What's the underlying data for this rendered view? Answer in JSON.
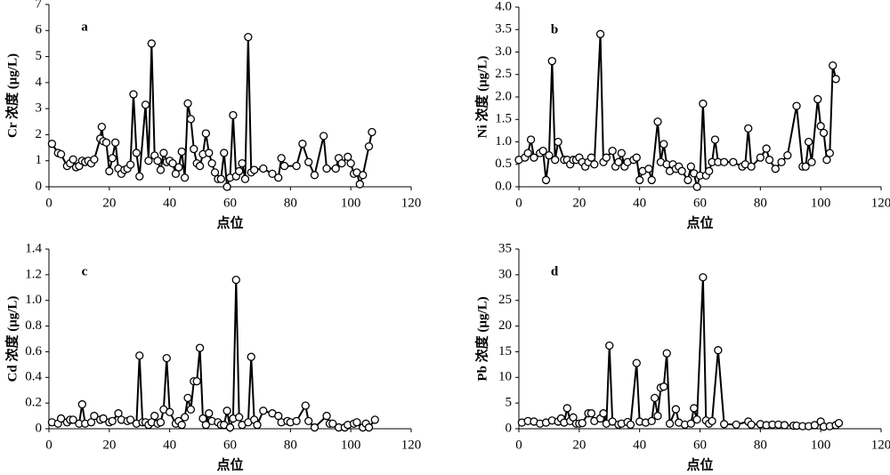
{
  "chart_data": [
    {
      "type": "line",
      "label": "a",
      "ylabel": "Cr 浓度 (μg/L)",
      "xlabel": "点位",
      "x": [
        1,
        3,
        4,
        6,
        7,
        8,
        9,
        10,
        11,
        12,
        13,
        14,
        15,
        17,
        17.5,
        18,
        19,
        20,
        21,
        22,
        23,
        24,
        25,
        26,
        27,
        28,
        29,
        30,
        32,
        33,
        34,
        35,
        36,
        37,
        38,
        39,
        40,
        41,
        42,
        43,
        44,
        45,
        46,
        47,
        48,
        49,
        50,
        51,
        52,
        53,
        54,
        55,
        56,
        57,
        58,
        59,
        60,
        61,
        62,
        63,
        64,
        65,
        66,
        67,
        68,
        71,
        74,
        76,
        77,
        78,
        82,
        84,
        86,
        88,
        91,
        92,
        95,
        96,
        97,
        99,
        100,
        101,
        102,
        103,
        104,
        106,
        107
      ],
      "values": [
        1.65,
        1.3,
        1.25,
        0.8,
        0.9,
        1.05,
        0.75,
        0.8,
        1.0,
        0.95,
        1.0,
        0.9,
        1.05,
        1.85,
        2.3,
        1.75,
        1.7,
        0.6,
        1.1,
        1.7,
        0.7,
        0.5,
        0.65,
        0.7,
        0.85,
        3.55,
        1.3,
        0.4,
        3.15,
        1.0,
        5.5,
        1.2,
        1.0,
        0.65,
        1.3,
        0.95,
        1.0,
        0.9,
        0.5,
        0.75,
        1.35,
        0.35,
        3.2,
        2.6,
        1.45,
        0.9,
        0.8,
        1.25,
        2.05,
        1.3,
        0.9,
        0.55,
        0.3,
        0.3,
        1.3,
        0.0,
        0.35,
        2.75,
        0.4,
        0.6,
        0.9,
        0.3,
        5.75,
        0.55,
        0.65,
        0.7,
        0.5,
        0.35,
        1.1,
        0.8,
        0.8,
        1.65,
        0.95,
        0.45,
        1.95,
        0.7,
        0.7,
        1.1,
        0.9,
        1.15,
        0.9,
        0.5,
        0.55,
        0.1,
        0.45,
        1.55,
        2.1
      ],
      "xlim": [
        0,
        120
      ],
      "xticks": [
        0,
        20,
        40,
        60,
        80,
        100,
        120
      ],
      "ylim": [
        0,
        7
      ],
      "yticks": [
        0,
        1,
        2,
        3,
        4,
        5,
        6,
        7
      ]
    },
    {
      "type": "line",
      "label": "b",
      "ylabel": "Ni 浓度 (μg/L)",
      "xlabel": "点位",
      "x": [
        0,
        2,
        3,
        4,
        5,
        7,
        8,
        9,
        10,
        11,
        12,
        13,
        15,
        16,
        17,
        18,
        19,
        20,
        21,
        22,
        23,
        24,
        25,
        27,
        28,
        29,
        31,
        32,
        33,
        34,
        35,
        36,
        38,
        39,
        40,
        41,
        43,
        44,
        46,
        47,
        48,
        49,
        50,
        51,
        52,
        53,
        54,
        56,
        57,
        58,
        59,
        60,
        61,
        62,
        63,
        64,
        65,
        66,
        68,
        71,
        74,
        75,
        76,
        77,
        80,
        82,
        83,
        85,
        87,
        89,
        92,
        94,
        95,
        96,
        97,
        99,
        100,
        101,
        102,
        103,
        104,
        105
      ],
      "values": [
        0.6,
        0.65,
        0.75,
        1.05,
        0.65,
        0.75,
        0.8,
        0.15,
        0.7,
        2.8,
        0.6,
        1.0,
        0.6,
        0.6,
        0.5,
        0.6,
        0.6,
        0.65,
        0.55,
        0.45,
        0.55,
        0.65,
        0.5,
        3.4,
        0.55,
        0.65,
        0.8,
        0.45,
        0.55,
        0.75,
        0.45,
        0.55,
        0.6,
        0.65,
        0.15,
        0.35,
        0.4,
        0.15,
        1.45,
        0.55,
        0.95,
        0.5,
        0.35,
        0.5,
        0.4,
        0.45,
        0.35,
        0.15,
        0.45,
        0.3,
        0,
        0.25,
        1.85,
        0.25,
        0.35,
        0.55,
        1.05,
        0.55,
        0.55,
        0.55,
        0.45,
        0.5,
        1.3,
        0.45,
        0.65,
        0.85,
        0.6,
        0.4,
        0.55,
        0.7,
        1.8,
        0.45,
        0.45,
        1.0,
        0.55,
        1.95,
        1.35,
        1.2,
        0.6,
        0.75,
        2.7,
        2.4
      ],
      "xlim": [
        0,
        120
      ],
      "xticks": [
        0,
        20,
        40,
        60,
        80,
        100,
        120
      ],
      "ylim": [
        0,
        4
      ],
      "yticks": [
        {
          "value": 0,
          "label": "0.0"
        },
        {
          "value": 0.5,
          "label": "0.5"
        },
        {
          "value": 1,
          "label": "1.0"
        },
        {
          "value": 1.5,
          "label": "1.5"
        },
        {
          "value": 2,
          "label": "2.0"
        },
        {
          "value": 2.5,
          "label": "2.5"
        },
        {
          "value": 3,
          "label": "3.0"
        },
        {
          "value": 3.5,
          "label": "3.5"
        },
        {
          "value": 4,
          "label": "4.0"
        }
      ]
    },
    {
      "type": "line",
      "label": "c",
      "ylabel": "Cd 浓度 (μg/L)",
      "xlabel": "点位",
      "x": [
        1,
        3,
        4,
        6,
        7,
        8,
        10,
        11,
        12,
        14,
        15,
        17,
        18,
        20,
        21,
        23,
        24,
        26,
        27,
        29,
        30,
        31,
        32,
        33,
        34,
        35,
        36,
        37,
        38,
        39,
        40,
        42,
        43,
        44,
        45,
        46,
        47,
        48,
        49,
        50,
        51,
        52,
        53,
        54,
        56,
        57,
        58,
        59,
        60,
        61,
        62,
        63,
        64,
        66,
        67,
        68,
        69,
        71,
        74,
        76,
        77,
        79,
        80,
        82,
        85,
        86,
        88,
        92,
        93,
        94,
        96,
        98,
        99,
        101,
        102,
        104,
        105,
        106,
        108
      ],
      "values": [
        0.05,
        0.04,
        0.08,
        0.05,
        0.07,
        0.07,
        0.04,
        0.19,
        0.04,
        0.05,
        0.1,
        0.07,
        0.08,
        0.05,
        0.06,
        0.12,
        0.07,
        0.06,
        0.07,
        0.04,
        0.57,
        0.05,
        0.05,
        0.03,
        0.05,
        0.1,
        0.04,
        0.05,
        0.15,
        0.55,
        0.13,
        0.04,
        0.06,
        0.03,
        0.09,
        0.24,
        0.15,
        0.37,
        0.37,
        0.63,
        0.08,
        0.03,
        0.12,
        0.06,
        0.05,
        0.03,
        0.03,
        0.14,
        0.01,
        0.08,
        1.16,
        0.09,
        0.03,
        0.05,
        0.56,
        0.07,
        0.03,
        0.14,
        0.12,
        0.1,
        0.05,
        0.06,
        0.05,
        0.06,
        0.18,
        0.06,
        0.01,
        0.1,
        0.04,
        0.04,
        0.01,
        0.01,
        0.03,
        0.04,
        0.05,
        0.01,
        0.04,
        0.01,
        0.07
      ],
      "xlim": [
        0,
        120
      ],
      "xticks": [
        0,
        20,
        40,
        60,
        80,
        100,
        120
      ],
      "ylim": [
        0,
        1.4
      ],
      "yticks": [
        0,
        0.2,
        0.4,
        0.6,
        0.8,
        {
          "value": 1,
          "label": "1.0"
        },
        1.2,
        1.4
      ]
    },
    {
      "type": "line",
      "label": "d",
      "ylabel": "Pb 浓度 (μg/L)",
      "xlabel": "点位",
      "x": [
        1,
        3,
        5,
        7,
        9,
        11,
        13,
        14,
        15,
        16,
        17,
        18,
        19,
        20,
        21,
        23,
        24,
        25,
        27,
        28,
        29,
        30,
        31,
        33,
        34,
        36,
        37,
        39,
        40,
        42,
        44,
        45,
        46,
        47,
        48,
        49,
        50,
        52,
        53,
        55,
        57,
        58,
        59,
        61,
        62,
        63,
        64,
        66,
        68,
        72,
        76,
        77,
        80,
        82,
        84,
        86,
        88,
        91,
        92,
        94,
        96,
        98,
        100,
        101,
        103,
        105,
        106
      ],
      "values": [
        1.2,
        1.5,
        1.4,
        1.0,
        1.2,
        1.6,
        1.4,
        2.0,
        1.2,
        4.0,
        1.5,
        2.2,
        1.0,
        1.0,
        1.1,
        3.0,
        3.0,
        1.5,
        2.0,
        3.0,
        1.0,
        16.2,
        1.4,
        0.8,
        1.0,
        1.3,
        0.8,
        12.8,
        1.4,
        1.2,
        1.5,
        6.0,
        2.5,
        8.0,
        8.2,
        14.7,
        1.0,
        3.8,
        1.2,
        0.8,
        1.0,
        4.0,
        1.8,
        29.5,
        1.6,
        1.0,
        1.5,
        15.3,
        0.9,
        0.8,
        1.4,
        0.8,
        0.9,
        0.7,
        0.8,
        0.8,
        0.7,
        0.6,
        0.6,
        0.5,
        0.5,
        0.7,
        1.4,
        0.4,
        0.5,
        0.7,
        1.1
      ],
      "xlim": [
        0,
        120
      ],
      "xticks": [
        0,
        20,
        40,
        60,
        80,
        100,
        120
      ],
      "ylim": [
        0,
        35
      ],
      "yticks": [
        0,
        5,
        10,
        15,
        20,
        25,
        30,
        35
      ]
    }
  ]
}
